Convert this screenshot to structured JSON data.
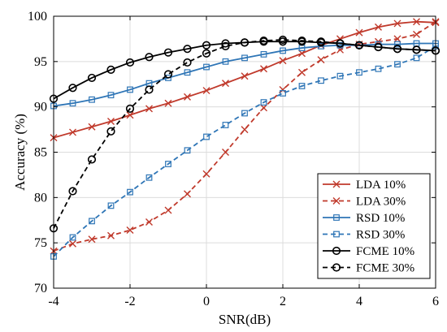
{
  "chart_data": {
    "type": "line",
    "title": "",
    "xlabel": "SNR(dB)",
    "ylabel": "Accuracy (%)",
    "xlim": [
      -4,
      6
    ],
    "ylim": [
      70,
      100
    ],
    "xticks": [
      -4,
      -2,
      0,
      2,
      4,
      6
    ],
    "yticks": [
      70,
      75,
      80,
      85,
      90,
      95,
      100
    ],
    "grid": true,
    "legend_position": "bottom-right",
    "x": [
      -4,
      -3.5,
      -3,
      -2.5,
      -2,
      -1.5,
      -1,
      -0.5,
      0,
      0.5,
      1,
      1.5,
      2,
      2.5,
      3,
      3.5,
      4,
      4.5,
      5,
      5.5,
      6
    ],
    "series": [
      {
        "name": "LDA 10%",
        "color": "#c0392b",
        "dash": "solid",
        "marker": "x",
        "values": [
          86.6,
          87.2,
          87.8,
          88.4,
          89.1,
          89.8,
          90.4,
          91.1,
          91.8,
          92.6,
          93.4,
          94.2,
          95.1,
          95.9,
          96.8,
          97.5,
          98.2,
          98.8,
          99.2,
          99.4,
          99.3
        ]
      },
      {
        "name": "LDA 30%",
        "color": "#c0392b",
        "dash": "dashed",
        "marker": "x",
        "values": [
          74.1,
          74.9,
          75.4,
          75.8,
          76.4,
          77.3,
          78.6,
          80.4,
          82.6,
          85.0,
          87.5,
          89.9,
          91.9,
          93.8,
          95.2,
          96.3,
          96.9,
          97.2,
          97.5,
          98.0,
          99.4
        ]
      },
      {
        "name": "RSD 10%",
        "color": "#2e75b6",
        "dash": "solid",
        "marker": "square",
        "values": [
          90.1,
          90.4,
          90.8,
          91.3,
          91.9,
          92.6,
          93.2,
          93.8,
          94.4,
          95.0,
          95.4,
          95.8,
          96.2,
          96.5,
          96.7,
          96.8,
          96.8,
          96.9,
          96.9,
          97.0,
          97.0
        ]
      },
      {
        "name": "RSD 30%",
        "color": "#2e75b6",
        "dash": "dashed",
        "marker": "square",
        "values": [
          73.5,
          75.6,
          77.4,
          79.1,
          80.6,
          82.2,
          83.7,
          85.2,
          86.7,
          88.0,
          89.3,
          90.5,
          91.5,
          92.3,
          92.9,
          93.4,
          93.8,
          94.2,
          94.7,
          95.4,
          96.7
        ]
      },
      {
        "name": "FCME 10%",
        "color": "#000000",
        "dash": "solid",
        "marker": "circle",
        "values": [
          90.9,
          92.1,
          93.2,
          94.1,
          94.9,
          95.5,
          96.0,
          96.4,
          96.8,
          97.0,
          97.1,
          97.2,
          97.2,
          97.2,
          97.1,
          97.0,
          96.8,
          96.6,
          96.4,
          96.3,
          96.2
        ]
      },
      {
        "name": "FCME 30%",
        "color": "#000000",
        "dash": "dashed",
        "marker": "circle",
        "values": [
          76.6,
          80.7,
          84.2,
          87.3,
          89.8,
          91.9,
          93.6,
          94.9,
          95.9,
          96.7,
          97.1,
          97.3,
          97.4,
          97.3,
          97.2,
          97.0,
          96.8,
          96.6,
          96.4,
          96.3,
          96.2
        ]
      }
    ]
  }
}
